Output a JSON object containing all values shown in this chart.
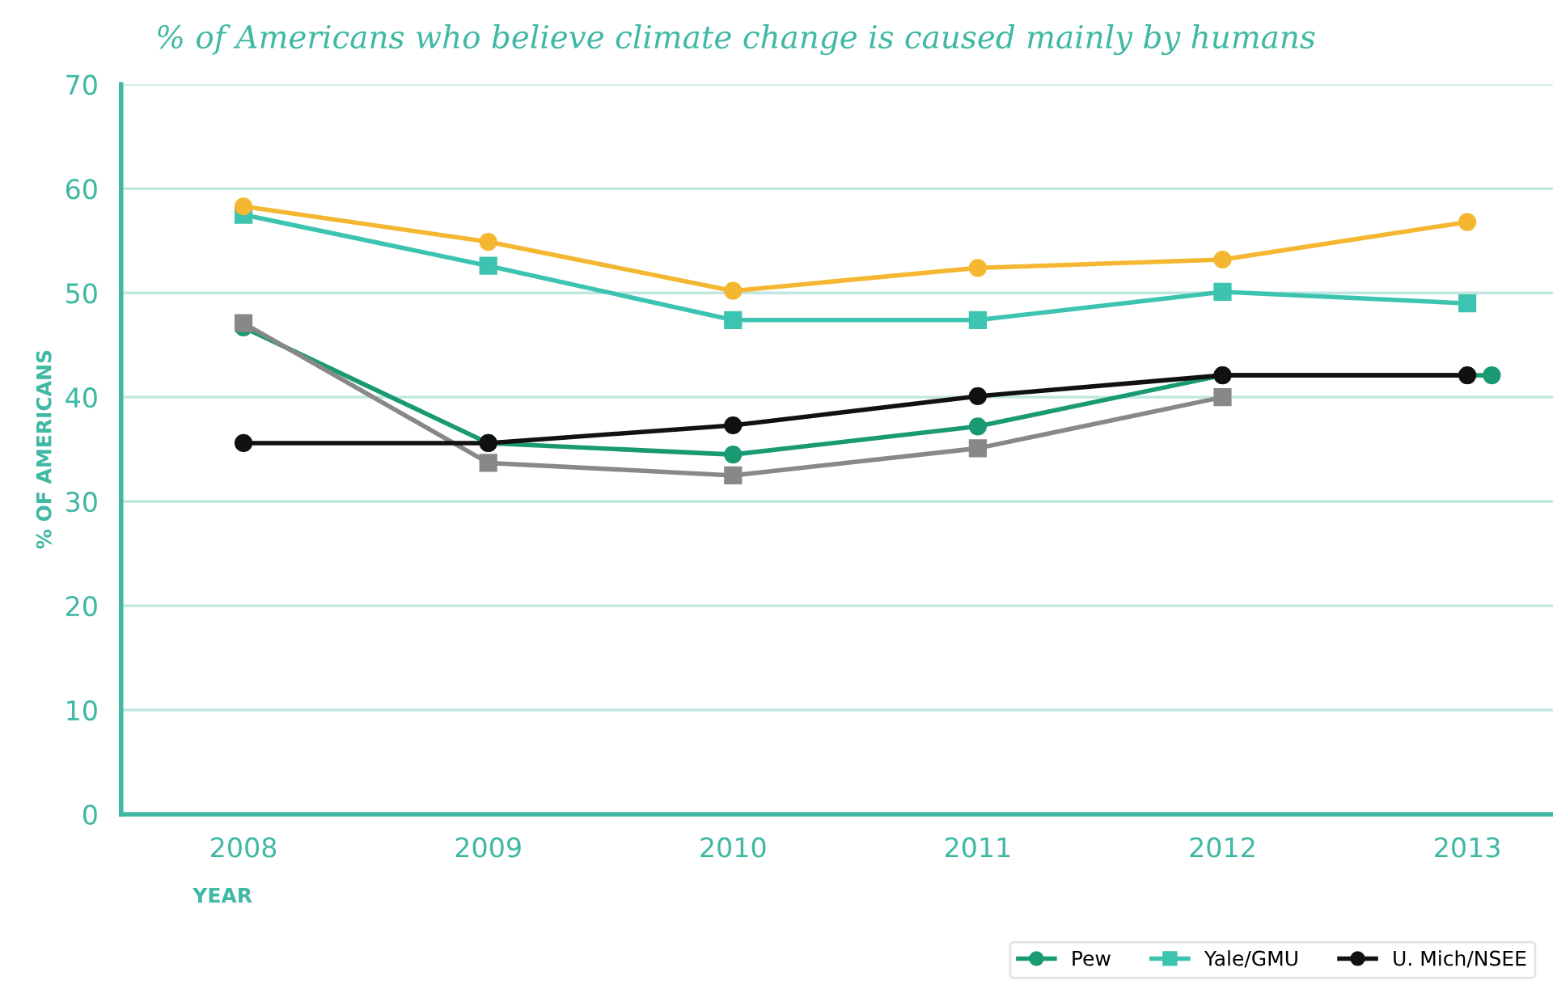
{
  "chart_data": {
    "type": "line",
    "title": "% of Americans who believe climate change is caused mainly by humans",
    "xlabel": "YEAR",
    "ylabel": "% OF AMERICANS",
    "x": [
      2008,
      2009,
      2010,
      2011,
      2012,
      2013
    ],
    "series": [
      {
        "name": "Pew",
        "color": "#1a9a72",
        "marker": "circle",
        "x": [
          2008,
          2009,
          2010,
          2011,
          2012,
          2013.1
        ],
        "values": [
          46.7,
          35.6,
          34.5,
          37.2,
          42.1,
          42.1
        ]
      },
      {
        "name": "Yale/GMU",
        "color": "#3cc4b0",
        "marker": "square",
        "values": [
          57.5,
          52.6,
          47.4,
          47.4,
          50.1,
          49.0
        ]
      },
      {
        "color": "#f5b731",
        "marker": "circle",
        "values": [
          58.3,
          54.9,
          50.2,
          52.4,
          53.2,
          56.8
        ]
      },
      {
        "color": "#888888",
        "marker": "square",
        "values": [
          47.1,
          33.7,
          32.5,
          35.1,
          40.0,
          null
        ]
      },
      {
        "name": "U. Mich/NSEE",
        "color": "#111111",
        "marker": "circle",
        "values": [
          35.6,
          35.6,
          37.3,
          40.1,
          42.1,
          42.1
        ]
      }
    ],
    "xlim": [
      2007.5,
      2013.35
    ],
    "xticks": [
      2008,
      2009,
      2010,
      2011,
      2012,
      2013
    ],
    "ylim": [
      0,
      70
    ],
    "yticks": [
      0,
      10,
      20,
      30,
      40,
      50,
      60,
      70
    ],
    "grid": "y",
    "legend": "bottom right",
    "line_style": "solid"
  }
}
